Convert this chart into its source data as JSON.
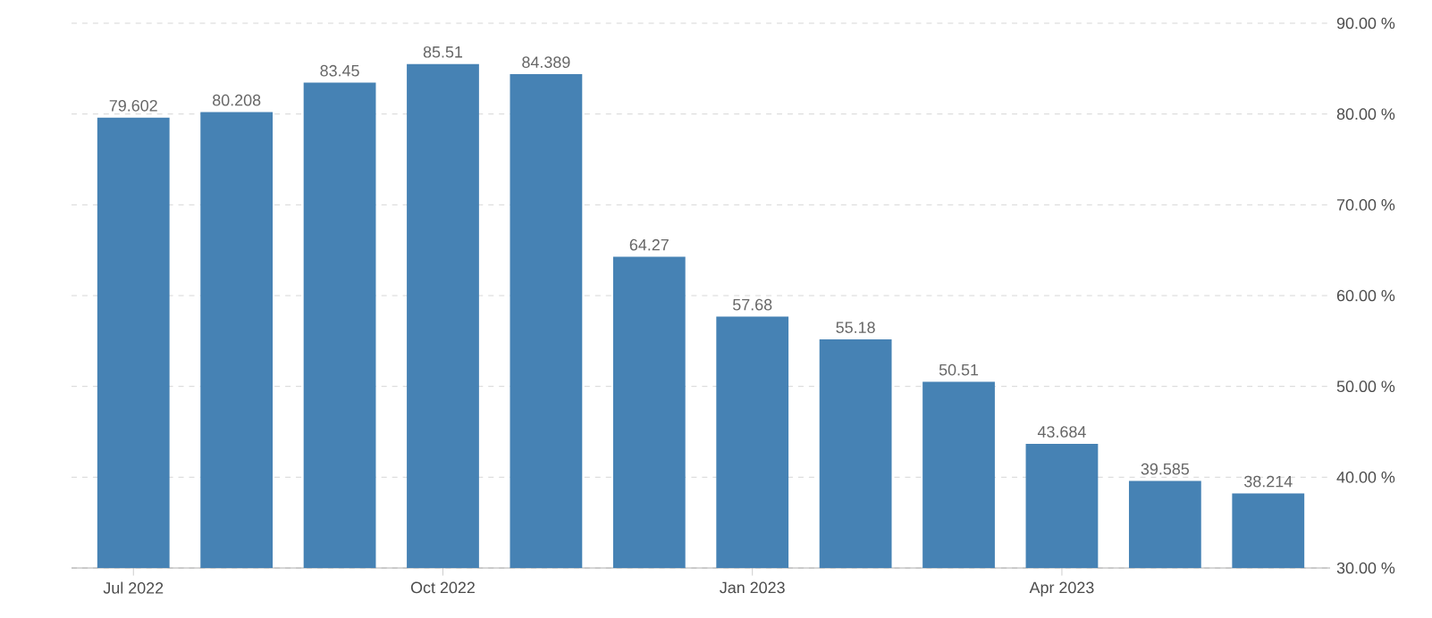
{
  "chart_data": {
    "type": "bar",
    "categories": [
      "Jul 2022",
      null,
      null,
      "Oct 2022",
      null,
      null,
      "Jan 2023",
      null,
      null,
      "Apr 2023",
      null,
      null
    ],
    "values": [
      79.602,
      80.208,
      83.45,
      85.51,
      84.389,
      64.27,
      57.68,
      55.18,
      50.51,
      43.684,
      39.585,
      38.214
    ],
    "value_labels": [
      "79.602",
      "80.208",
      "83.45",
      "85.51",
      "84.389",
      "64.27",
      "57.68",
      "55.18",
      "50.51",
      "43.684",
      "39.585",
      "38.214"
    ],
    "color": "#4682b4",
    "ylim": [
      30,
      90
    ],
    "yticks": [
      {
        "value": 30,
        "label": "30.00 %"
      },
      {
        "value": 40,
        "label": "40.00 %"
      },
      {
        "value": 50,
        "label": "50.00 %"
      },
      {
        "value": 60,
        "label": "60.00 %"
      },
      {
        "value": 70,
        "label": "70.00 %"
      },
      {
        "value": 80,
        "label": "80.00 %"
      },
      {
        "value": 90,
        "label": "90.00 %"
      }
    ],
    "grid": "y"
  }
}
